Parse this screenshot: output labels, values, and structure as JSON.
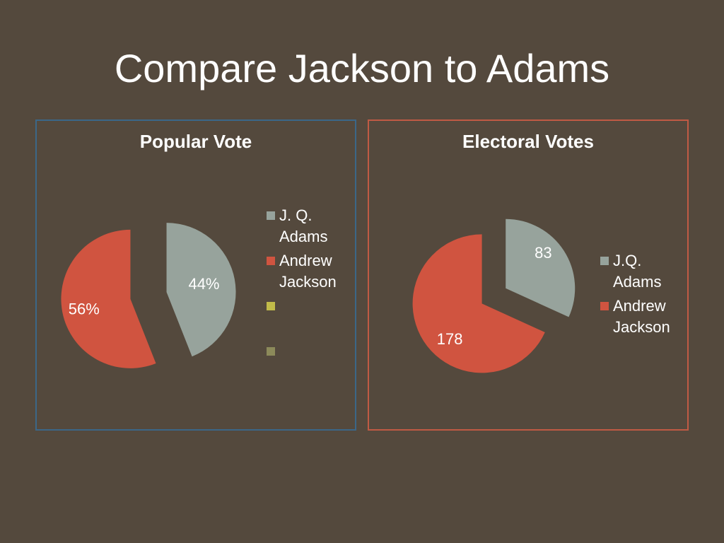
{
  "slide": {
    "title": "Compare Jackson to Adams"
  },
  "colors": {
    "background": "#54493d",
    "adams": "#97a39c",
    "jackson": "#d05440",
    "extra1": "#c1bb49",
    "extra2": "#8c8a5a"
  },
  "chart_data": [
    {
      "type": "pie",
      "title": "Popular Vote",
      "labels": [
        "J. Q. Adams",
        "Andrew Jackson"
      ],
      "values": [
        44,
        56
      ],
      "data_labels": [
        "44%",
        "56%"
      ],
      "exploded": true,
      "legend_placement": "right",
      "legend": [
        {
          "label": "J. Q. Adams",
          "color": "#97a39c"
        },
        {
          "label": "Andrew Jackson",
          "color": "#d05440"
        },
        {
          "label": "",
          "color": "#c1bb49"
        },
        {
          "label": "",
          "color": "#8c8a5a"
        }
      ]
    },
    {
      "type": "pie",
      "title": "Electoral Votes",
      "labels": [
        "J.Q. Adams",
        "Andrew Jackson"
      ],
      "values": [
        83,
        178
      ],
      "data_labels": [
        "83",
        "178"
      ],
      "exploded": true,
      "legend_placement": "right",
      "legend": [
        {
          "label": "J.Q. Adams",
          "color": "#97a39c"
        },
        {
          "label": " Andrew Jackson",
          "color": "#d05440"
        }
      ]
    }
  ]
}
